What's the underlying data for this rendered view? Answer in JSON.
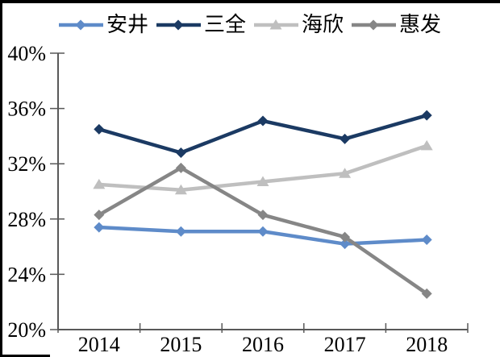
{
  "chart_data": {
    "type": "line",
    "title": "",
    "xlabel": "",
    "ylabel": "",
    "categories": [
      "2014",
      "2015",
      "2016",
      "2017",
      "2018"
    ],
    "ylim": [
      20,
      40
    ],
    "yticks": [
      20,
      24,
      28,
      32,
      36,
      40
    ],
    "ytick_labels": [
      "20%",
      "24%",
      "28%",
      "32%",
      "36%",
      "40%"
    ],
    "grid": false,
    "legend_position": "top",
    "axis_color": "#595959",
    "text_color": "#000000",
    "series": [
      {
        "key": "anjing",
        "name": "安井",
        "color": "#5E8BC9",
        "marker": "diamond",
        "values": [
          27.4,
          27.1,
          27.1,
          26.2,
          26.5
        ]
      },
      {
        "key": "sanquan",
        "name": "三全",
        "color": "#1B3A63",
        "marker": "diamond",
        "values": [
          34.5,
          32.8,
          35.1,
          33.8,
          35.5
        ]
      },
      {
        "key": "haixin",
        "name": "海欣",
        "color": "#BFBFBF",
        "marker": "triangle",
        "values": [
          30.5,
          30.1,
          30.7,
          31.3,
          33.3
        ]
      },
      {
        "key": "huifa",
        "name": "惠发",
        "color": "#868686",
        "marker": "diamond",
        "values": [
          28.3,
          31.7,
          28.3,
          26.7,
          22.6
        ]
      }
    ]
  }
}
